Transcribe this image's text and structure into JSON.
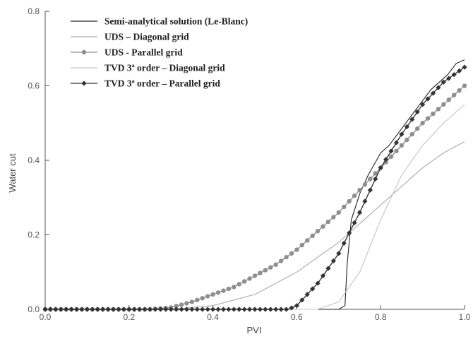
{
  "chart_data": {
    "type": "line",
    "title": "",
    "xlabel": "PVI",
    "ylabel": "Water cut",
    "xlim": [
      0,
      1
    ],
    "ylim": [
      0,
      0.8
    ],
    "xticks": [
      "0.0",
      "0.2",
      "0.4",
      "0.6",
      "0.8",
      "1.0"
    ],
    "yticks": [
      "0.0",
      "0.2",
      "0.4",
      "0.6",
      "0.8"
    ],
    "grid": false,
    "legend_position": "top-left",
    "series": [
      {
        "name": "Semi-analytical solution (Le-Blanc)",
        "color": "#222222",
        "marker": "none",
        "x": [
          0,
          0.7,
          0.715,
          0.72,
          0.73,
          0.75,
          0.77,
          0.79,
          0.8,
          0.82,
          0.84,
          0.86,
          0.88,
          0.9,
          0.92,
          0.94,
          0.96,
          0.98,
          1.0
        ],
        "y": [
          0,
          0,
          0.01,
          0.12,
          0.24,
          0.31,
          0.36,
          0.4,
          0.42,
          0.44,
          0.47,
          0.5,
          0.53,
          0.56,
          0.59,
          0.61,
          0.63,
          0.66,
          0.67
        ]
      },
      {
        "name": "UDS – Diagonal grid",
        "color": "#aaaaaa",
        "marker": "none",
        "x": [
          0,
          0.3,
          0.4,
          0.5,
          0.6,
          0.65,
          0.7,
          0.75,
          0.8,
          0.85,
          0.9,
          0.95,
          1.0
        ],
        "y": [
          0,
          0,
          0.01,
          0.04,
          0.1,
          0.14,
          0.18,
          0.23,
          0.28,
          0.33,
          0.38,
          0.42,
          0.45
        ]
      },
      {
        "name": "UDS -  Parallel grid",
        "color": "#8f8f8f",
        "marker": "circle",
        "x": [
          0,
          0.25,
          0.3,
          0.35,
          0.4,
          0.45,
          0.5,
          0.55,
          0.6,
          0.65,
          0.7,
          0.75,
          0.8,
          0.85,
          0.9,
          0.95,
          1.0
        ],
        "y": [
          0,
          0,
          0.005,
          0.02,
          0.04,
          0.06,
          0.09,
          0.12,
          0.16,
          0.21,
          0.26,
          0.32,
          0.38,
          0.44,
          0.5,
          0.55,
          0.6
        ]
      },
      {
        "name": "TVD 3ª order – Diagonal grid",
        "color": "#c4c4c4",
        "marker": "none",
        "x": [
          0,
          0.65,
          0.7,
          0.75,
          0.8,
          0.85,
          0.9,
          0.95,
          1.0
        ],
        "y": [
          0,
          0,
          0.02,
          0.1,
          0.24,
          0.36,
          0.44,
          0.5,
          0.55
        ]
      },
      {
        "name": "TVD 3ª order – Parallel grid",
        "color": "#333333",
        "marker": "diamond",
        "x": [
          0,
          0.58,
          0.6,
          0.65,
          0.7,
          0.75,
          0.8,
          0.85,
          0.9,
          0.95,
          1.0
        ],
        "y": [
          0,
          0,
          0.01,
          0.07,
          0.15,
          0.26,
          0.38,
          0.47,
          0.55,
          0.61,
          0.65
        ]
      }
    ]
  }
}
